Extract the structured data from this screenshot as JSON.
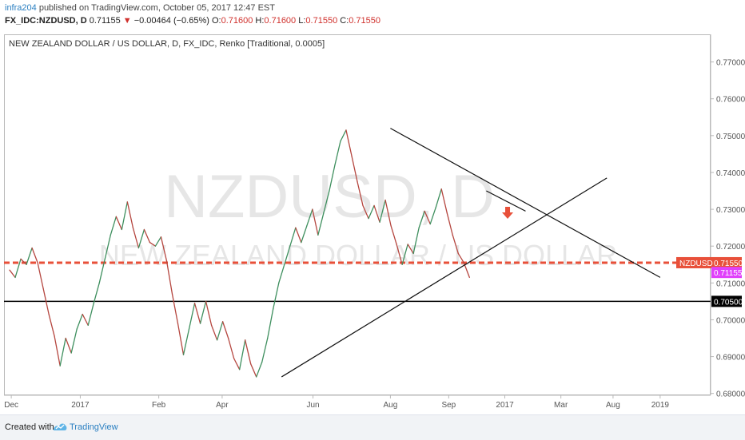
{
  "header": {
    "author": "infra204",
    "published": " published on TradingView.com, October 05, 2017 12:47 EST",
    "symbol": "FX_IDC:NZDUSD, D",
    "last": "0.71155",
    "change": "−0.00464 (−0.65%)",
    "o_label": "O:",
    "o_value": "0.71600",
    "h_label": "H:",
    "h_value": "0.71600",
    "l_label": "L:",
    "l_value": "0.71550",
    "c_label": "C:",
    "c_value": "0.71550"
  },
  "chart_title": "NEW ZEALAND DOLLAR / US DOLLAR, D, FX_IDC, Renko [Traditional, 0.0005]",
  "watermark": {
    "symbol": "NZDUSD, D",
    "name": "NEW ZEALAND DOLLAR / US DOLLAR"
  },
  "footer": {
    "created_with": "Created with",
    "brand": "TradingView"
  },
  "colors": {
    "up": "#26a69a",
    "down": "#ef5350",
    "level_red": "#e8503a",
    "price_badge": "#e040fb",
    "black": "#000000"
  },
  "chart_data": {
    "type": "line",
    "title": "NEW ZEALAND DOLLAR / US DOLLAR, D, FX_IDC, Renko [Traditional, 0.0005]",
    "ylim": [
      0.6795,
      0.7775
    ],
    "y_ticks": [
      "0.77000",
      "0.76000",
      "0.75000",
      "0.74000",
      "0.73000",
      "0.72000",
      "0.71000",
      "0.70000",
      "0.69000",
      "0.68000"
    ],
    "y_tick_values": [
      0.77,
      0.76,
      0.75,
      0.74,
      0.73,
      0.72,
      0.71,
      0.7,
      0.69,
      0.68
    ],
    "x_ticks": [
      "Dec",
      "2017",
      "Feb",
      "Apr",
      "Jun",
      "Aug",
      "Sep",
      "2017",
      "Mar",
      "Aug",
      "2019"
    ],
    "x_tick_positions": [
      0.3,
      12.6,
      26.6,
      37.9,
      54.1,
      67.9,
      78.3,
      88.3,
      98.3,
      107.6,
      116.0
    ],
    "x_range": [
      -1,
      125
    ],
    "series": [
      {
        "values": [
          0.7135,
          0.7115,
          0.7165,
          0.715,
          0.7195,
          0.7155,
          0.7085,
          0.7015,
          0.6955,
          0.6875,
          0.695,
          0.691,
          0.6975,
          0.7015,
          0.6985,
          0.7045,
          0.71,
          0.7165,
          0.723,
          0.728,
          0.7245,
          0.732,
          0.725,
          0.7195,
          0.7245,
          0.721,
          0.72,
          0.7225,
          0.716,
          0.707,
          0.699,
          0.6905,
          0.6975,
          0.7045,
          0.699,
          0.705,
          0.6985,
          0.6945,
          0.6995,
          0.695,
          0.6895,
          0.6865,
          0.6945,
          0.688,
          0.6845,
          0.6885,
          0.695,
          0.703,
          0.71,
          0.715,
          0.72,
          0.725,
          0.721,
          0.7255,
          0.73,
          0.723,
          0.729,
          0.735,
          0.742,
          0.7485,
          0.7515,
          0.7445,
          0.7375,
          0.731,
          0.7275,
          0.731,
          0.7265,
          0.7325,
          0.7255,
          0.7205,
          0.715,
          0.7205,
          0.718,
          0.725,
          0.7295,
          0.726,
          0.7305,
          0.7355,
          0.729,
          0.723,
          0.718,
          0.7155,
          0.7115
        ]
      },
      {
        "name": "NZDUSD",
        "level": 0.7155
      },
      {
        "level": 0.705
      }
    ],
    "trendlines": [
      {
        "from": [
          67.9,
          0.752
        ],
        "to": [
          116.0,
          0.7115
        ]
      },
      {
        "from": [
          48.5,
          0.6845
        ],
        "to": [
          106.5,
          0.7385
        ]
      },
      {
        "from": [
          85.0,
          0.735
        ],
        "to": [
          92.0,
          0.7295
        ]
      }
    ],
    "annotations": [
      {
        "kind": "arrow-down",
        "x": 88.8,
        "y": 0.7285
      }
    ],
    "price_labels": [
      {
        "text": "NZDUSD",
        "value": "0.71550",
        "y": 0.7155
      },
      {
        "text": "",
        "value": "0.71155",
        "y": 0.71155
      },
      {
        "text": "",
        "value": "0.70500",
        "y": 0.705
      }
    ],
    "grid": false
  }
}
